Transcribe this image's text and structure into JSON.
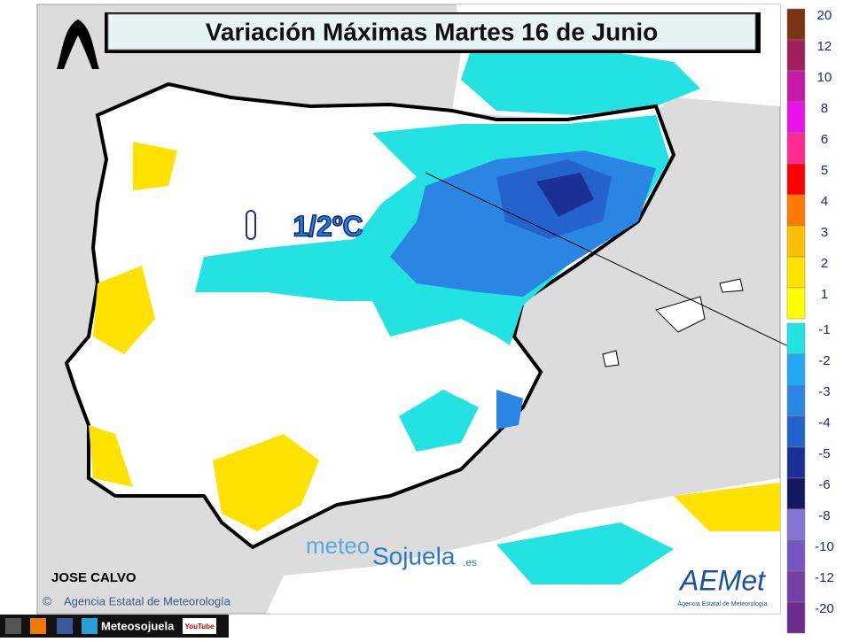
{
  "header": {
    "title": "Variación Máximas Martes 16 de Junio"
  },
  "annotation": {
    "text": "1/2ºC"
  },
  "author": "JOSE CALVO",
  "credit": {
    "symbol": "©",
    "text": "Agencia Estatal de Meteorología"
  },
  "watermark": {
    "part1": "meteo",
    "part2": "Sojuela",
    "part3": ".es"
  },
  "logo": {
    "name": "AEMet",
    "subtitle": "Agencia Estatal de Meteorología"
  },
  "footer": {
    "handle": "Meteosojuela",
    "youtube": "YouTube"
  },
  "legend": {
    "items": [
      {
        "value": 20,
        "color": "#7a3412"
      },
      {
        "value": 12,
        "color": "#a0205a"
      },
      {
        "value": 10,
        "color": "#c81aa8"
      },
      {
        "value": 8,
        "color": "#e812e8"
      },
      {
        "value": 6,
        "color": "#ff2a90"
      },
      {
        "value": 5,
        "color": "#ff0000"
      },
      {
        "value": 4,
        "color": "#ff7a00"
      },
      {
        "value": 3,
        "color": "#ffbe00"
      },
      {
        "value": 2,
        "color": "#ffe200"
      },
      {
        "value": 1,
        "color": "#ffff00"
      },
      {
        "value": -1,
        "color": "#22e2e2"
      },
      {
        "value": -2,
        "color": "#22a8f2"
      },
      {
        "value": -3,
        "color": "#2a86e2"
      },
      {
        "value": -4,
        "color": "#2462cc"
      },
      {
        "value": -5,
        "color": "#1a3094"
      },
      {
        "value": -6,
        "color": "#121a62"
      },
      {
        "value": -8,
        "color": "#8474d4"
      },
      {
        "value": -10,
        "color": "#7656c0"
      },
      {
        "value": -12,
        "color": "#7440a4"
      },
      {
        "value": -20,
        "color": "#6c2c8c"
      }
    ]
  }
}
